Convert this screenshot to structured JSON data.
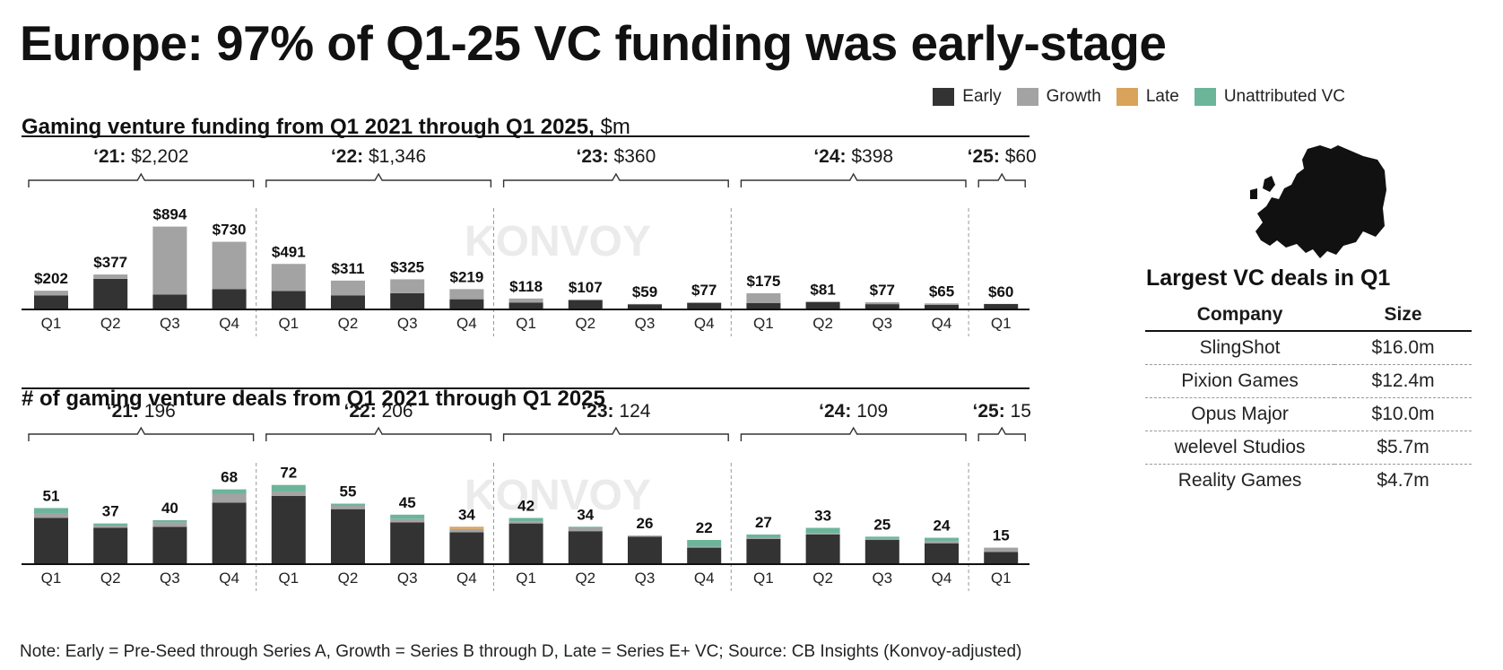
{
  "title": "Europe: 97% of Q1-25 VC funding was early-stage",
  "legend": [
    {
      "label": "Early",
      "color": "#333333"
    },
    {
      "label": "Growth",
      "color": "#a3a3a3"
    },
    {
      "label": "Late",
      "color": "#d9a35b"
    },
    {
      "label": "Unattributed VC",
      "color": "#6cb59a"
    }
  ],
  "watermark": "KONVOY",
  "funding_section": {
    "title": "Gaming venture funding from Q1 2021 through Q1 2025,",
    "unit": "$m"
  },
  "deals_section": {
    "title": "# of gaming venture deals from Q1 2021 through Q1 2025"
  },
  "chart_data": [
    {
      "type": "bar",
      "stacked": true,
      "title": "Gaming venture funding from Q1 2021 through Q1 2025, $m",
      "categories": [
        "Q1",
        "Q2",
        "Q3",
        "Q4",
        "Q1",
        "Q2",
        "Q3",
        "Q4",
        "Q1",
        "Q2",
        "Q3",
        "Q4",
        "Q1",
        "Q2",
        "Q3",
        "Q4",
        "Q1"
      ],
      "years": [
        {
          "label": "‘21:",
          "total_label": "$2,202"
        },
        {
          "label": "‘22:",
          "total_label": "$1,346"
        },
        {
          "label": "‘23:",
          "total_label": "$360"
        },
        {
          "label": "‘24:",
          "total_label": "$398"
        },
        {
          "label": "‘25:",
          "total_label": "$60"
        }
      ],
      "totals": [
        202,
        377,
        894,
        730,
        491,
        311,
        325,
        219,
        118,
        107,
        59,
        77,
        175,
        81,
        77,
        65,
        60
      ],
      "total_labels": [
        "$202",
        "$377",
        "$894",
        "$730",
        "$491",
        "$311",
        "$325",
        "$219",
        "$118",
        "$107",
        "$59",
        "$77",
        "$175",
        "$81",
        "$77",
        "$65",
        "$60"
      ],
      "series": [
        {
          "name": "Early",
          "values": [
            150,
            330,
            160,
            220,
            200,
            150,
            175,
            110,
            75,
            100,
            55,
            70,
            70,
            81,
            57,
            50,
            58
          ]
        },
        {
          "name": "Growth",
          "values": [
            52,
            47,
            734,
            510,
            291,
            161,
            150,
            109,
            43,
            7,
            4,
            7,
            105,
            0,
            20,
            15,
            2
          ]
        },
        {
          "name": "Late",
          "values": [
            0,
            0,
            0,
            0,
            0,
            0,
            0,
            0,
            0,
            0,
            0,
            0,
            0,
            0,
            0,
            0,
            0
          ]
        },
        {
          "name": "Unattributed VC",
          "values": [
            0,
            0,
            0,
            0,
            0,
            0,
            0,
            0,
            0,
            0,
            0,
            0,
            0,
            0,
            0,
            0,
            0
          ]
        }
      ],
      "ylim": [
        0,
        900
      ]
    },
    {
      "type": "bar",
      "stacked": true,
      "title": "# of gaming venture deals from Q1 2021 through Q1 2025",
      "categories": [
        "Q1",
        "Q2",
        "Q3",
        "Q4",
        "Q1",
        "Q2",
        "Q3",
        "Q4",
        "Q1",
        "Q2",
        "Q3",
        "Q4",
        "Q1",
        "Q2",
        "Q3",
        "Q4",
        "Q1"
      ],
      "years": [
        {
          "label": "‘21:",
          "total_label": "196"
        },
        {
          "label": "‘22:",
          "total_label": "206"
        },
        {
          "label": "‘23:",
          "total_label": "124"
        },
        {
          "label": "‘24:",
          "total_label": "109"
        },
        {
          "label": "‘25:",
          "total_label": "15"
        }
      ],
      "totals": [
        51,
        37,
        40,
        68,
        72,
        55,
        45,
        34,
        42,
        34,
        26,
        22,
        27,
        33,
        25,
        24,
        15
      ],
      "series": [
        {
          "name": "Early",
          "values": [
            42,
            33,
            34,
            56,
            62,
            50,
            38,
            29,
            37,
            30,
            25,
            15,
            23,
            27,
            22,
            19,
            11
          ]
        },
        {
          "name": "Growth",
          "values": [
            4,
            2,
            4,
            8,
            4,
            3,
            3,
            3,
            2,
            3,
            1,
            1,
            1,
            1,
            1,
            2,
            4
          ]
        },
        {
          "name": "Late",
          "values": [
            0,
            0,
            0,
            0,
            0,
            0,
            0,
            2,
            0,
            0,
            0,
            0,
            0,
            0,
            0,
            0,
            0
          ]
        },
        {
          "name": "Unattributed VC",
          "values": [
            5,
            2,
            2,
            4,
            6,
            2,
            4,
            0,
            3,
            1,
            0,
            6,
            3,
            5,
            2,
            3,
            0
          ]
        }
      ],
      "ylim": [
        0,
        75
      ]
    }
  ],
  "side": {
    "title": "Largest VC deals in Q1",
    "headers": [
      "Company",
      "Size"
    ],
    "rows": [
      {
        "company": "SlingShot",
        "size": "$16.0m"
      },
      {
        "company": "Pixion Games",
        "size": "$12.4m"
      },
      {
        "company": "Opus Major",
        "size": "$10.0m"
      },
      {
        "company": "welevel Studios",
        "size": "$5.7m"
      },
      {
        "company": "Reality Games",
        "size": "$4.7m"
      }
    ]
  },
  "footnote": "Note: Early = Pre-Seed through Series A, Growth = Series B through D, Late = Series E+ VC; Source: CB Insights (Konvoy-adjusted)"
}
